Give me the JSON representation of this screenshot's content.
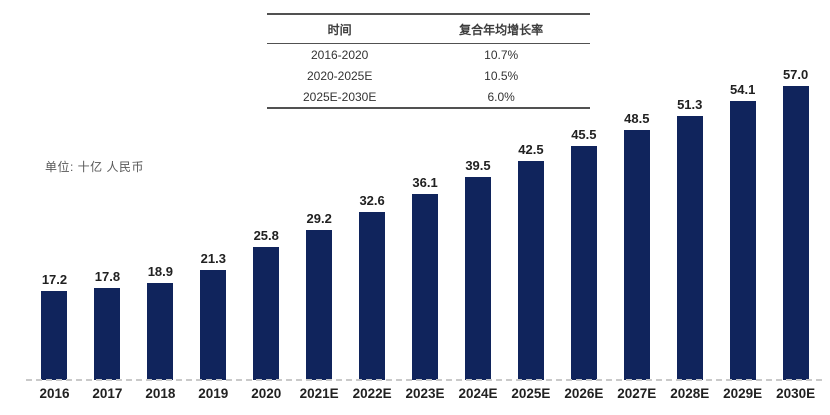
{
  "unit_label": "单位: 十亿 人民币",
  "colors": {
    "bar": "#10245C",
    "baseline": "#c9c9c9",
    "table_border": "#515151",
    "label_text": "#212121",
    "unit_text": "#595959"
  },
  "cagr_table": {
    "headers": [
      "时间",
      "复合年均增长率"
    ],
    "rows": [
      [
        "2016-2020",
        "10.7%"
      ],
      [
        "2020-2025E",
        "10.5%"
      ],
      [
        "2025E-2030E",
        "6.0%"
      ]
    ]
  },
  "chart_data": {
    "type": "bar",
    "categories": [
      "2016",
      "2017",
      "2018",
      "2019",
      "2020",
      "2021E",
      "2022E",
      "2023E",
      "2024E",
      "2025E",
      "2026E",
      "2027E",
      "2028E",
      "2029E",
      "2030E"
    ],
    "values": [
      17.2,
      17.8,
      18.9,
      21.3,
      25.8,
      29.2,
      32.6,
      36.1,
      39.5,
      42.5,
      45.5,
      48.5,
      51.3,
      54.1,
      57.0
    ],
    "value_label_decimals": 1,
    "title": "",
    "xlabel": "",
    "ylabel": "单位: 十亿 人民币",
    "ylim": [
      0,
      60
    ],
    "grid": false,
    "legend": false,
    "annotations": {
      "table_title_col1": "时间",
      "table_title_col2": "复合年均增长率",
      "cagr_2016_2020": "10.7%",
      "cagr_2020_2025E": "10.5%",
      "cagr_2025E_2030E": "6.0%"
    }
  }
}
